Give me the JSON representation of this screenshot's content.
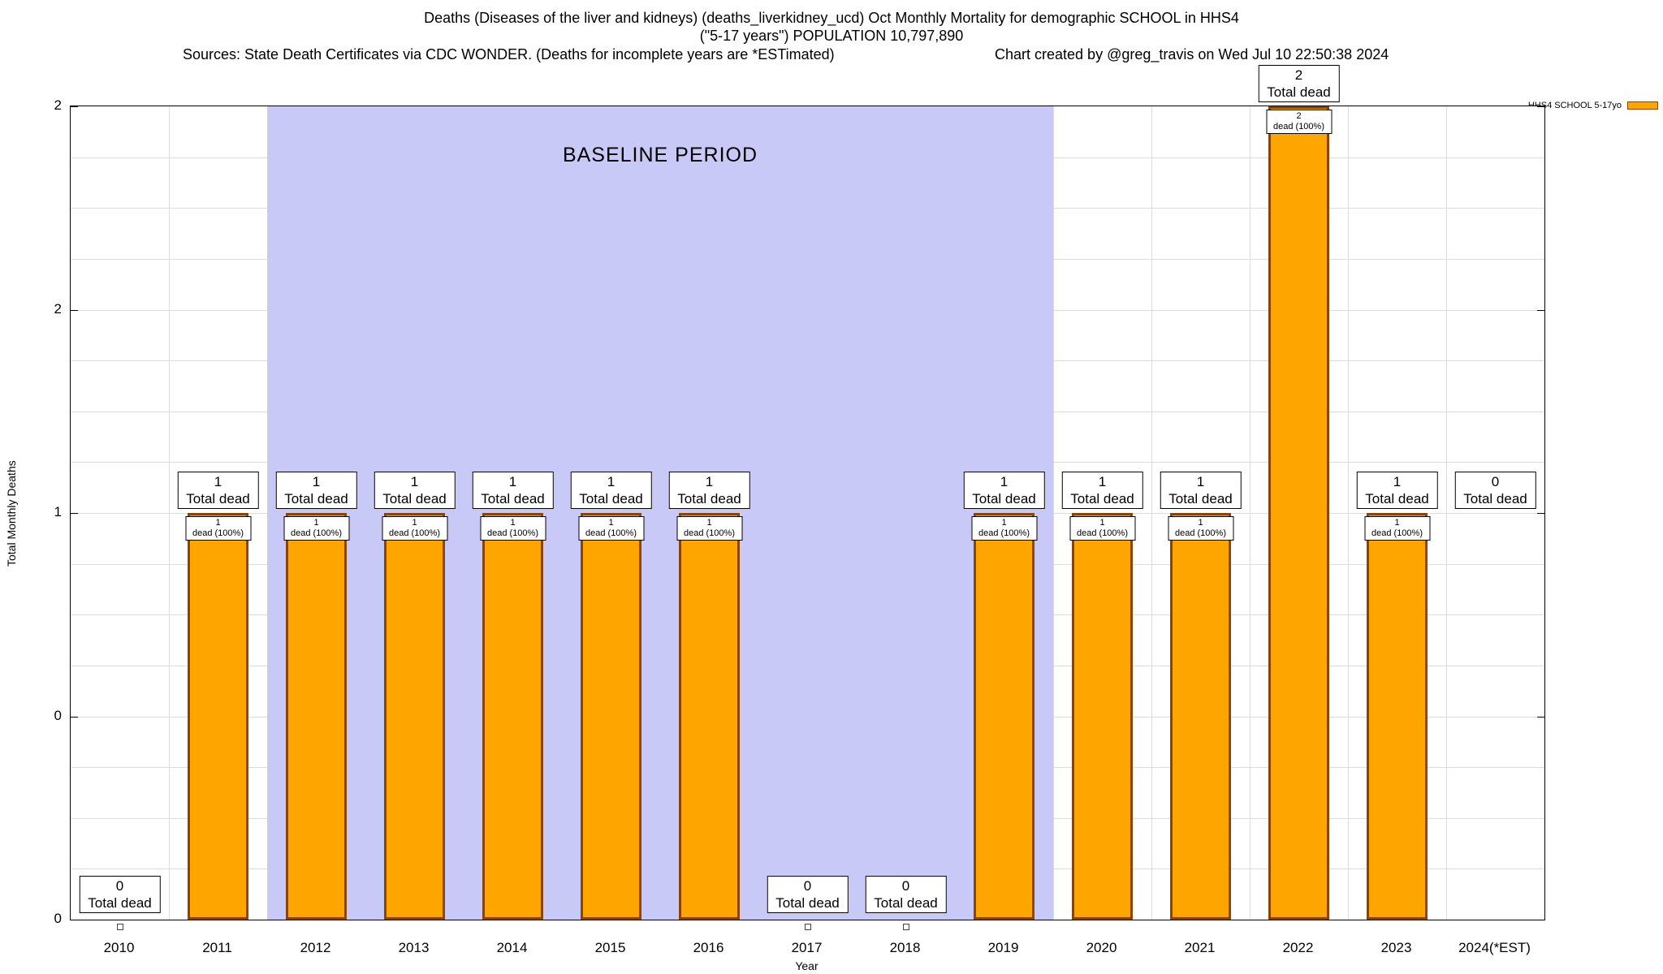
{
  "title": {
    "line1": "Deaths (Diseases of the liver and kidneys) (deaths_liverkidney_ucd) Oct Monthly Mortality for demographic SCHOOL in HHS4",
    "line2": "(\"5-17 years\") POPULATION 10,797,890",
    "sources": "Sources: State Death Certificates via CDC WONDER. (Deaths for incomplete years are *ESTimated)",
    "credit": "Chart created by @greg_travis on Wed Jul 10 22:50:38 2024"
  },
  "axes": {
    "y_ticks": [
      {
        "value": 2,
        "label": "2"
      },
      {
        "value": 1.5,
        "label": "2"
      },
      {
        "value": 1,
        "label": "1"
      },
      {
        "value": 0.5,
        "label": "0"
      },
      {
        "value": 0,
        "label": "0"
      }
    ]
  },
  "colors": {
    "bar_fill": "#FFA500",
    "bar_border": "#8B4500",
    "baseline_fill": "#C9C9F7",
    "grid": "#DCDCDC"
  },
  "chart_data": {
    "type": "bar",
    "title": "Deaths (Diseases of the liver and kidneys) (deaths_liverkidney_ucd) Oct Monthly Mortality for demographic SCHOOL in HHS4 (\"5-17 years\") POPULATION 10,797,890",
    "xlabel": "Year",
    "ylabel": "Total Monthly Deaths",
    "ylim": [
      0,
      2
    ],
    "y_tick_labels_top_to_bottom": [
      "2",
      "2",
      "1",
      "0",
      "0"
    ],
    "grid": true,
    "legend_position": "top-right",
    "series_name": "HHS4 SCHOOL 5-17yo",
    "categories": [
      "2010",
      "2011",
      "2012",
      "2013",
      "2014",
      "2015",
      "2016",
      "2017",
      "2018",
      "2019",
      "2020",
      "2021",
      "2022",
      "2023",
      "2024(*EST)"
    ],
    "values": [
      0,
      1,
      1,
      1,
      1,
      1,
      1,
      0,
      0,
      1,
      1,
      1,
      2,
      1,
      0
    ],
    "top_label_suffix": "Total dead",
    "inner_label_suffix": "dead (100%)",
    "baseline_region": {
      "label": "BASELINE PERIOD",
      "from": "2012",
      "to": "2019"
    },
    "bars": [
      {
        "year": "2010",
        "value": 0,
        "label_pos": "bottom",
        "marker": true
      },
      {
        "year": "2011",
        "value": 1,
        "label_pos": "above",
        "marker": false
      },
      {
        "year": "2012",
        "value": 1,
        "label_pos": "above",
        "marker": false
      },
      {
        "year": "2013",
        "value": 1,
        "label_pos": "above",
        "marker": false
      },
      {
        "year": "2014",
        "value": 1,
        "label_pos": "above",
        "marker": false
      },
      {
        "year": "2015",
        "value": 1,
        "label_pos": "above",
        "marker": false
      },
      {
        "year": "2016",
        "value": 1,
        "label_pos": "above",
        "marker": false
      },
      {
        "year": "2017",
        "value": 0,
        "label_pos": "bottom",
        "marker": true
      },
      {
        "year": "2018",
        "value": 0,
        "label_pos": "bottom",
        "marker": true
      },
      {
        "year": "2019",
        "value": 1,
        "label_pos": "above",
        "marker": false
      },
      {
        "year": "2020",
        "value": 1,
        "label_pos": "above",
        "marker": false
      },
      {
        "year": "2021",
        "value": 1,
        "label_pos": "above",
        "marker": false
      },
      {
        "year": "2022",
        "value": 2,
        "label_pos": "above",
        "marker": false
      },
      {
        "year": "2023",
        "value": 1,
        "label_pos": "above",
        "marker": false
      },
      {
        "year": "2024(*EST)",
        "value": 0,
        "label_pos": "high",
        "marker": false
      }
    ]
  }
}
